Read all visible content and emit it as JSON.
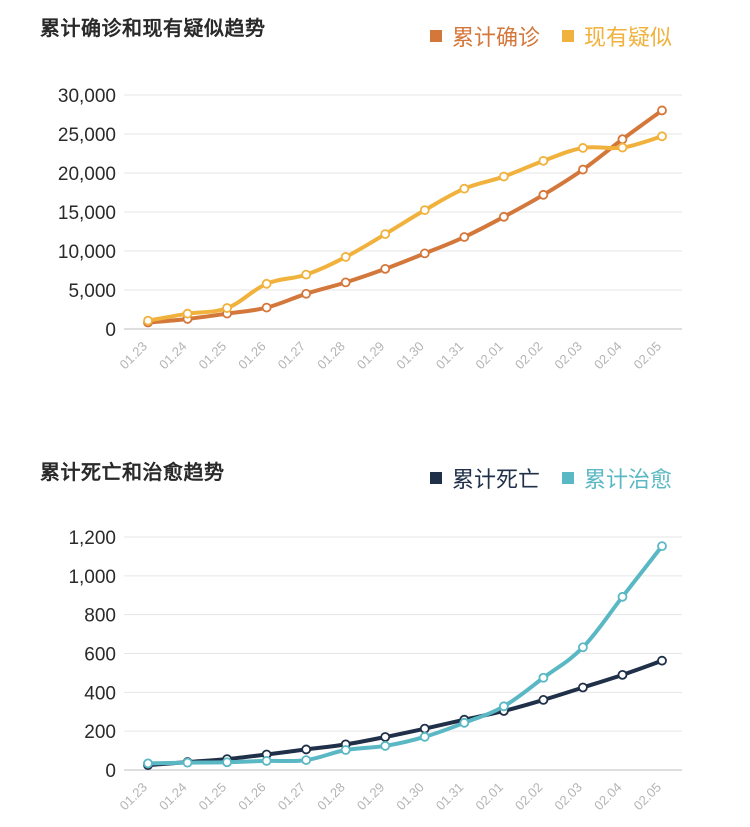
{
  "chart_data": [
    {
      "type": "line",
      "title": "累计确诊和现有疑似趋势",
      "categories": [
        "01.23",
        "01.24",
        "01.25",
        "01.26",
        "01.27",
        "01.28",
        "01.29",
        "01.30",
        "01.31",
        "02.01",
        "02.02",
        "02.03",
        "02.04",
        "02.05"
      ],
      "ylim": [
        0,
        30000
      ],
      "yticks": [
        "0",
        "5,000",
        "10,000",
        "15,000",
        "20,000",
        "25,000",
        "30,000"
      ],
      "ytick_values": [
        0,
        5000,
        10000,
        15000,
        20000,
        25000,
        30000
      ],
      "series": [
        {
          "name": "累计确诊",
          "color": "#d4773a",
          "values": [
            830,
            1287,
            1975,
            2744,
            4515,
            5974,
            7711,
            9692,
            11791,
            14380,
            17205,
            20438,
            24324,
            28018
          ]
        },
        {
          "name": "现有疑似",
          "color": "#f0b23c",
          "values": [
            1072,
            1965,
            2684,
            5794,
            6973,
            9239,
            12167,
            15238,
            17988,
            19544,
            21558,
            23214,
            23260,
            24702
          ]
        }
      ]
    },
    {
      "type": "line",
      "title": "累计死亡和治愈趋势",
      "categories": [
        "01.23",
        "01.24",
        "01.25",
        "01.26",
        "01.27",
        "01.28",
        "01.29",
        "01.30",
        "01.31",
        "02.01",
        "02.02",
        "02.03",
        "02.04",
        "02.05"
      ],
      "ylim": [
        0,
        1200
      ],
      "yticks": [
        "0",
        "200",
        "400",
        "600",
        "800",
        "1,000",
        "1,200"
      ],
      "ytick_values": [
        0,
        200,
        400,
        600,
        800,
        1000,
        1200
      ],
      "series": [
        {
          "name": "累计死亡",
          "color": "#1f3048",
          "values": [
            25,
            41,
            56,
            80,
            106,
            132,
            170,
            213,
            259,
            304,
            361,
            425,
            490,
            563
          ]
        },
        {
          "name": "累计治愈",
          "color": "#5ab8c4",
          "values": [
            34,
            38,
            40,
            47,
            51,
            103,
            124,
            171,
            243,
            328,
            475,
            632,
            892,
            1153
          ]
        }
      ]
    }
  ]
}
